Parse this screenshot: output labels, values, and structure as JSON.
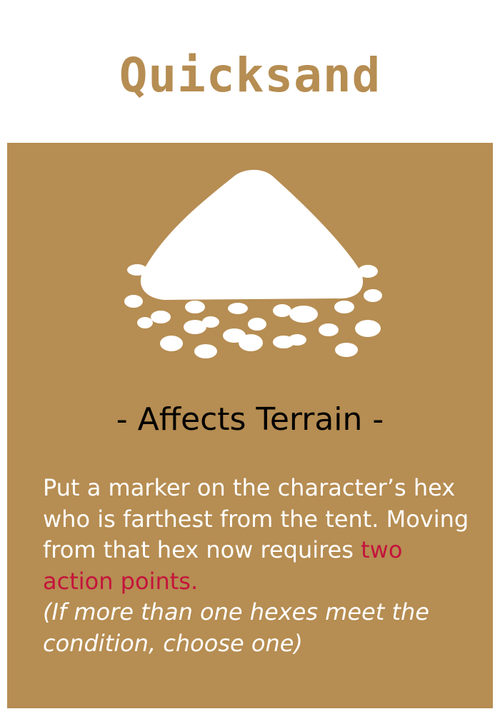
{
  "card": {
    "title": "Quicksand",
    "subtitle": "- Affects Terrain -",
    "icon": "sand-pile-icon",
    "effect": {
      "text_part1": "Put a marker on the character’s hex who is farthest from the tent. Moving from that hex now requires ",
      "highlight": "two action points.",
      "note": "(If more than one hexes meet the condition, choose one)"
    }
  },
  "colors": {
    "brand": "#b68d52",
    "panel": "#b68d52",
    "title": "#b68d52",
    "highlight": "#c4143c",
    "body_text": "#ffffff",
    "subtitle_text": "#000000",
    "icon": "#ffffff"
  }
}
